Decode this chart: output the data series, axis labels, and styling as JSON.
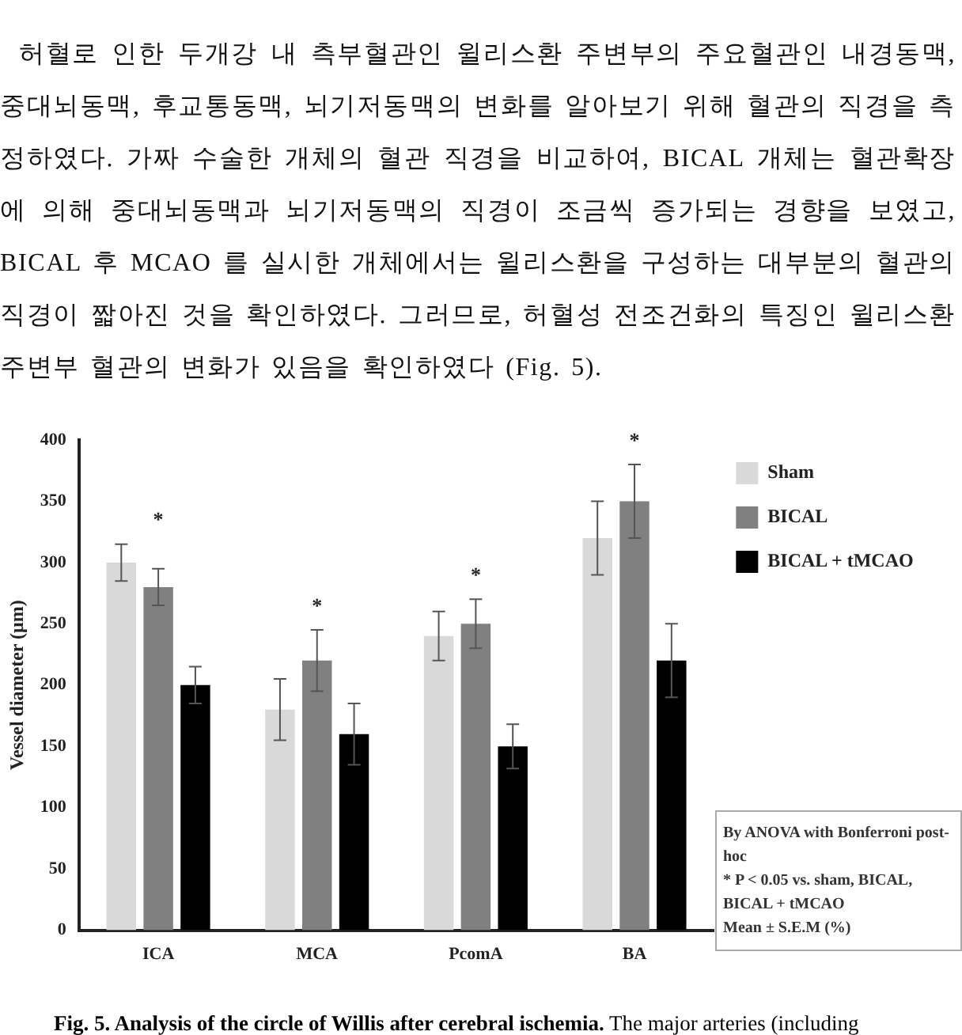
{
  "chart_data": {
    "type": "bar",
    "subtitle": "허혈로 인한 두개강 내 측부혈관인 윌리스환 주변부의 주요혈관인 내경동맥, 중대뇌동맥, 후교통동맥, 뇌기저동맥의 변화를 알아보기 위해 혈관의 직경을 측정하였다. 가짜 수술한 개체의 혈관 직경을 비교하여, BICAL 개체는 혈관확장에 의해 중대뇌동맥과 뇌기저동맥의 직경이 조금씩 증가되는 경향을 보였고, BICAL 후 MCAO 를 실시한 개체에서는 윌리스환을 구성하는 대부분의 혈관의 직경이 짧아진 것을 확인하였다. 그러므로, 허혈성 전조건화의 특징인 윌리스환 주변부 혈관의 변화가 있음을 확인하였다 (Fig. 5).",
    "ylabel": "Vessel diameter (μm)",
    "categories": [
      "ICA",
      "MCA",
      "PcomA",
      "BA"
    ],
    "series": [
      {
        "name": "Sham",
        "color": "#d9d9d9",
        "values": [
          300,
          180,
          240,
          320
        ],
        "errors": [
          15,
          25,
          20,
          30
        ]
      },
      {
        "name": "BICAL",
        "color": "#808080",
        "values": [
          280,
          220,
          250,
          350
        ],
        "errors": [
          15,
          25,
          20,
          30
        ]
      },
      {
        "name": "BICAL + tMCAO",
        "color": "#000000",
        "values": [
          200,
          160,
          150,
          220
        ],
        "errors": [
          15,
          25,
          18,
          30
        ]
      }
    ],
    "ylim": [
      0,
      400
    ],
    "yticks": [
      0,
      50,
      100,
      150,
      200,
      250,
      300,
      350,
      400
    ],
    "grid": false,
    "legend": "top right",
    "annotations": [
      "*",
      "*",
      "*",
      "*",
      "By ANOVA with Bonferroni post-hoc\n* P < 0.05 vs. sham, BICAL, BICAL + tMCAO\nMean ± S.E.M (%)",
      "Fig. 5. Analysis of the circle of Willis after cerebral ischemia. The major arteries (including"
    ]
  }
}
